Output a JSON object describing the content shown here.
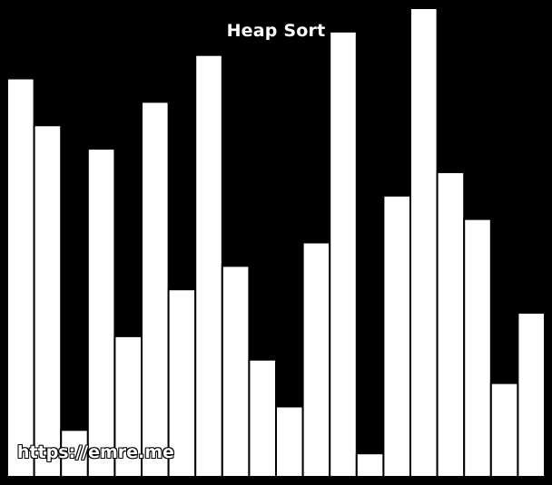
{
  "window": {
    "title": "Heap Sort",
    "watermark": "https://emre.me"
  },
  "colors": {
    "background": "#000000",
    "bar_fill": "#ffffff",
    "bar_stroke": "#000000"
  },
  "chart_data": {
    "type": "bar",
    "title": "Heap Sort",
    "xlabel": "",
    "ylabel": "",
    "ylim": [
      0,
      1
    ],
    "values": [
      0.85,
      0.75,
      0.1,
      0.7,
      0.3,
      0.8,
      0.4,
      0.9,
      0.45,
      0.25,
      0.15,
      0.5,
      0.95,
      0.05,
      0.6,
      1.0,
      0.65,
      0.55,
      0.2,
      0.35
    ]
  }
}
